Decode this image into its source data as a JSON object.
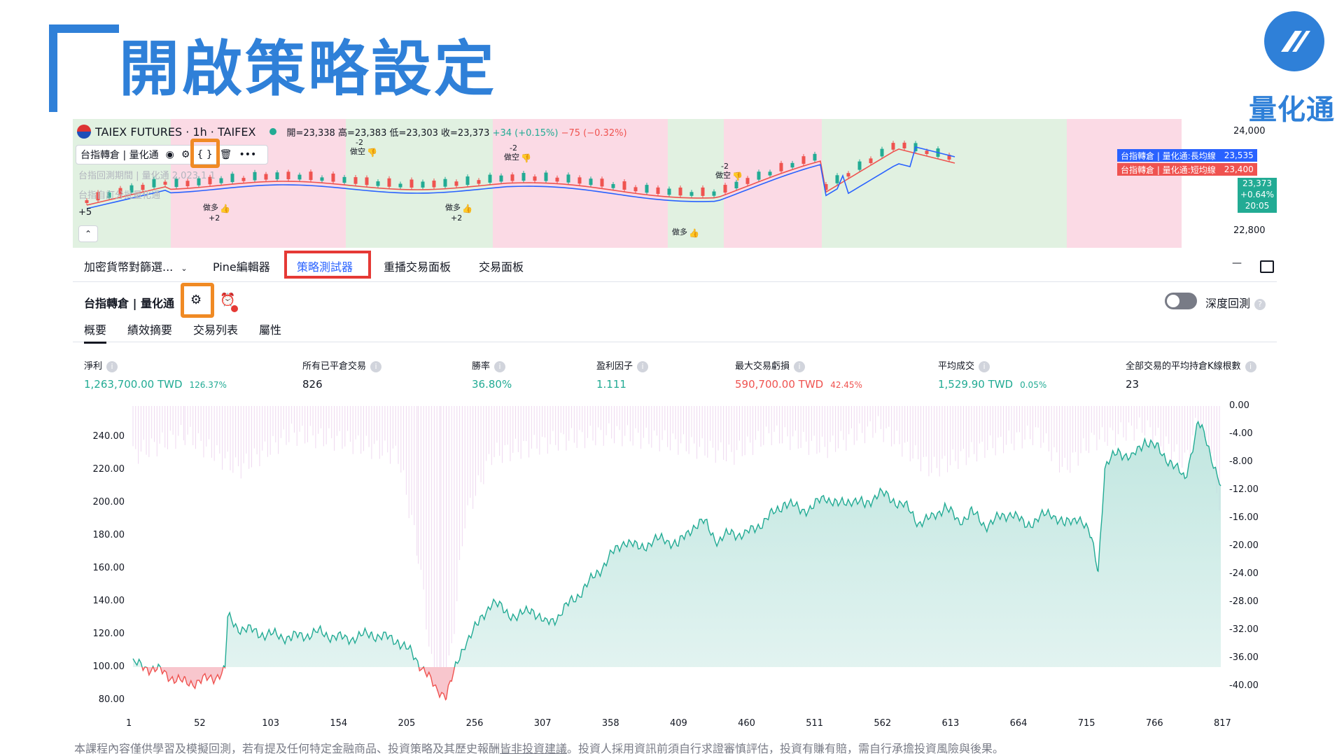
{
  "slide": {
    "title": "開啟策略設定",
    "logo_text": "量化通",
    "disclaimer_pre": "本課程內容僅供學習及模擬回測，若有提及任何特定金融商品、投資策略及其歷史報酬",
    "disclaimer_link": "皆非投資建議",
    "disclaimer_post": "。投資人採用資訊前須自行求證審慎評估，投資有賺有賠，需自行承擔投資風險與後果。"
  },
  "top_chart": {
    "symbol": "TAIEX FUTURES · 1h · TAIFEX",
    "ohlc": {
      "open": "開=23,338",
      "high": "高=23,383",
      "low": "低=23,303",
      "close": "收=23,373",
      "change": "+34 (+0.15%)",
      "prev": "−75 (−0.32%)"
    },
    "indicator_label": "台指轉倉 | 量化通",
    "faded_row1": "台指回測期間 | 量化通 2,023 1 1",
    "faded_row2": "台指自訂分批量化通",
    "price_high": "24,000",
    "price_low": "22,800",
    "badge_long": "台指轉倉 | 量化通:長均線",
    "badge_long_value": "23,535",
    "badge_short": "台指轉倉 | 量化通:短均線",
    "badge_short_value": "23,400",
    "last_price": "23,373",
    "last_change": "+0.64%",
    "last_time": "20:05",
    "left_count": "+5",
    "signals": [
      {
        "type": "short",
        "text": "做空",
        "qty": "-2",
        "x": 500,
        "y": 220
      },
      {
        "type": "long",
        "text": "做多",
        "qty": "+2",
        "x": 290,
        "y": 300
      },
      {
        "type": "long",
        "text": "做多",
        "qty": "+2",
        "x": 636,
        "y": 300
      },
      {
        "type": "short",
        "text": "做空",
        "qty": "-2",
        "x": 720,
        "y": 228
      },
      {
        "type": "long",
        "text": "做多",
        "qty": "",
        "x": 960,
        "y": 335
      },
      {
        "type": "short",
        "text": "做空",
        "qty": "-2",
        "x": 1022,
        "y": 254
      }
    ],
    "colors": {
      "long_band": "#c8e6c9",
      "short_band": "#f8bbd0",
      "long_ma": "#2962ff",
      "short_ma": "#ef5350",
      "up": "#22ab94",
      "down": "#ef5350"
    }
  },
  "tabs": [
    "加密貨幣對篩選...",
    "Pine編輯器",
    "策略測試器",
    "重播交易面板",
    "交易面板"
  ],
  "strategy": {
    "name": "台指轉倉 | 量化通",
    "deep_backtest": "深度回測",
    "subtabs": [
      "概要",
      "績效摘要",
      "交易列表",
      "屬性"
    ]
  },
  "metrics": [
    {
      "label": "淨利",
      "value": "1,263,700.00 TWD",
      "pct": "126.37%",
      "color": "green"
    },
    {
      "label": "所有已平倉交易",
      "value": "826",
      "pct": "",
      "color": "dark"
    },
    {
      "label": "勝率",
      "value": "36.80%",
      "pct": "",
      "color": "green"
    },
    {
      "label": "盈利因子",
      "value": "1.111",
      "pct": "",
      "color": "green"
    },
    {
      "label": "最大交易虧損",
      "value": "590,700.00 TWD",
      "pct": "42.45%",
      "color": "red"
    },
    {
      "label": "平均成交",
      "value": "1,529.90 TWD",
      "pct": "0.05%",
      "color": "green"
    },
    {
      "label": "全部交易的平均持倉K線根數",
      "value": "23",
      "pct": "",
      "color": "dark"
    }
  ],
  "chart_data": {
    "type": "area",
    "x_ticks": [
      "1",
      "52",
      "103",
      "154",
      "205",
      "256",
      "307",
      "358",
      "409",
      "460",
      "511",
      "562",
      "613",
      "664",
      "715",
      "766",
      "817"
    ],
    "xlim": [
      1,
      817
    ],
    "y_left_ticks": [
      "240.00",
      "220.00",
      "200.00",
      "180.00",
      "160.00",
      "140.00",
      "120.00",
      "100.00",
      "80.00"
    ],
    "ylim_left": [
      80,
      250
    ],
    "y_right_ticks": [
      "0.00",
      "-4.00",
      "-8.00",
      "-12.00",
      "-16.00",
      "-20.00",
      "-24.00",
      "-28.00",
      "-32.00",
      "-36.00",
      "-40.00"
    ],
    "ylim_right": [
      -40,
      0
    ],
    "baseline": 100,
    "equity": [
      [
        1,
        102
      ],
      [
        20,
        98
      ],
      [
        40,
        90
      ],
      [
        60,
        93
      ],
      [
        70,
        98
      ],
      [
        72,
        130
      ],
      [
        80,
        124
      ],
      [
        100,
        120
      ],
      [
        120,
        118
      ],
      [
        140,
        121
      ],
      [
        160,
        117
      ],
      [
        180,
        120
      ],
      [
        200,
        116
      ],
      [
        210,
        108
      ],
      [
        220,
        98
      ],
      [
        228,
        86
      ],
      [
        236,
        84
      ],
      [
        240,
        92
      ],
      [
        250,
        115
      ],
      [
        260,
        126
      ],
      [
        270,
        140
      ],
      [
        280,
        134
      ],
      [
        290,
        130
      ],
      [
        300,
        136
      ],
      [
        310,
        126
      ],
      [
        320,
        131
      ],
      [
        330,
        140
      ],
      [
        340,
        148
      ],
      [
        350,
        158
      ],
      [
        360,
        168
      ],
      [
        370,
        177
      ],
      [
        380,
        172
      ],
      [
        390,
        176
      ],
      [
        400,
        178
      ],
      [
        410,
        174
      ],
      [
        420,
        185
      ],
      [
        430,
        188
      ],
      [
        440,
        176
      ],
      [
        450,
        182
      ],
      [
        460,
        180
      ],
      [
        470,
        186
      ],
      [
        480,
        192
      ],
      [
        490,
        200
      ],
      [
        500,
        196
      ],
      [
        510,
        196
      ],
      [
        520,
        204
      ],
      [
        530,
        198
      ],
      [
        540,
        202
      ],
      [
        550,
        198
      ],
      [
        560,
        206
      ],
      [
        570,
        202
      ],
      [
        580,
        198
      ],
      [
        590,
        188
      ],
      [
        600,
        190
      ],
      [
        610,
        198
      ],
      [
        620,
        188
      ],
      [
        630,
        194
      ],
      [
        640,
        186
      ],
      [
        650,
        190
      ],
      [
        660,
        194
      ],
      [
        670,
        186
      ],
      [
        680,
        190
      ],
      [
        690,
        194
      ],
      [
        700,
        186
      ],
      [
        710,
        192
      ],
      [
        720,
        178
      ],
      [
        725,
        160
      ],
      [
        730,
        220
      ],
      [
        740,
        232
      ],
      [
        750,
        226
      ],
      [
        760,
        238
      ],
      [
        770,
        232
      ],
      [
        780,
        224
      ],
      [
        790,
        214
      ],
      [
        800,
        248
      ],
      [
        805,
        240
      ],
      [
        810,
        228
      ],
      [
        817,
        210
      ]
    ],
    "drawdown": [
      [
        1,
        -6
      ],
      [
        40,
        -3
      ],
      [
        80,
        -8
      ],
      [
        120,
        -3
      ],
      [
        160,
        -4
      ],
      [
        200,
        -6
      ],
      [
        215,
        -20
      ],
      [
        225,
        -36
      ],
      [
        232,
        -40
      ],
      [
        240,
        -34
      ],
      [
        250,
        -15
      ],
      [
        270,
        -6
      ],
      [
        320,
        -4
      ],
      [
        360,
        -3
      ],
      [
        400,
        -4
      ],
      [
        450,
        -6
      ],
      [
        480,
        -3
      ],
      [
        520,
        -5
      ],
      [
        560,
        -2
      ],
      [
        600,
        -8
      ],
      [
        640,
        -5
      ],
      [
        680,
        -3
      ],
      [
        700,
        -8
      ],
      [
        720,
        -4
      ],
      [
        760,
        -2
      ],
      [
        790,
        -7
      ],
      [
        800,
        -1
      ],
      [
        810,
        -6
      ],
      [
        817,
        -14
      ]
    ],
    "colors": {
      "equity_line": "#22ab94",
      "equity_fill": "#b9e3dc",
      "below_line": "#ef5350",
      "below_fill": "#f8c6cd",
      "drawdown": "#e8c8ea"
    }
  }
}
